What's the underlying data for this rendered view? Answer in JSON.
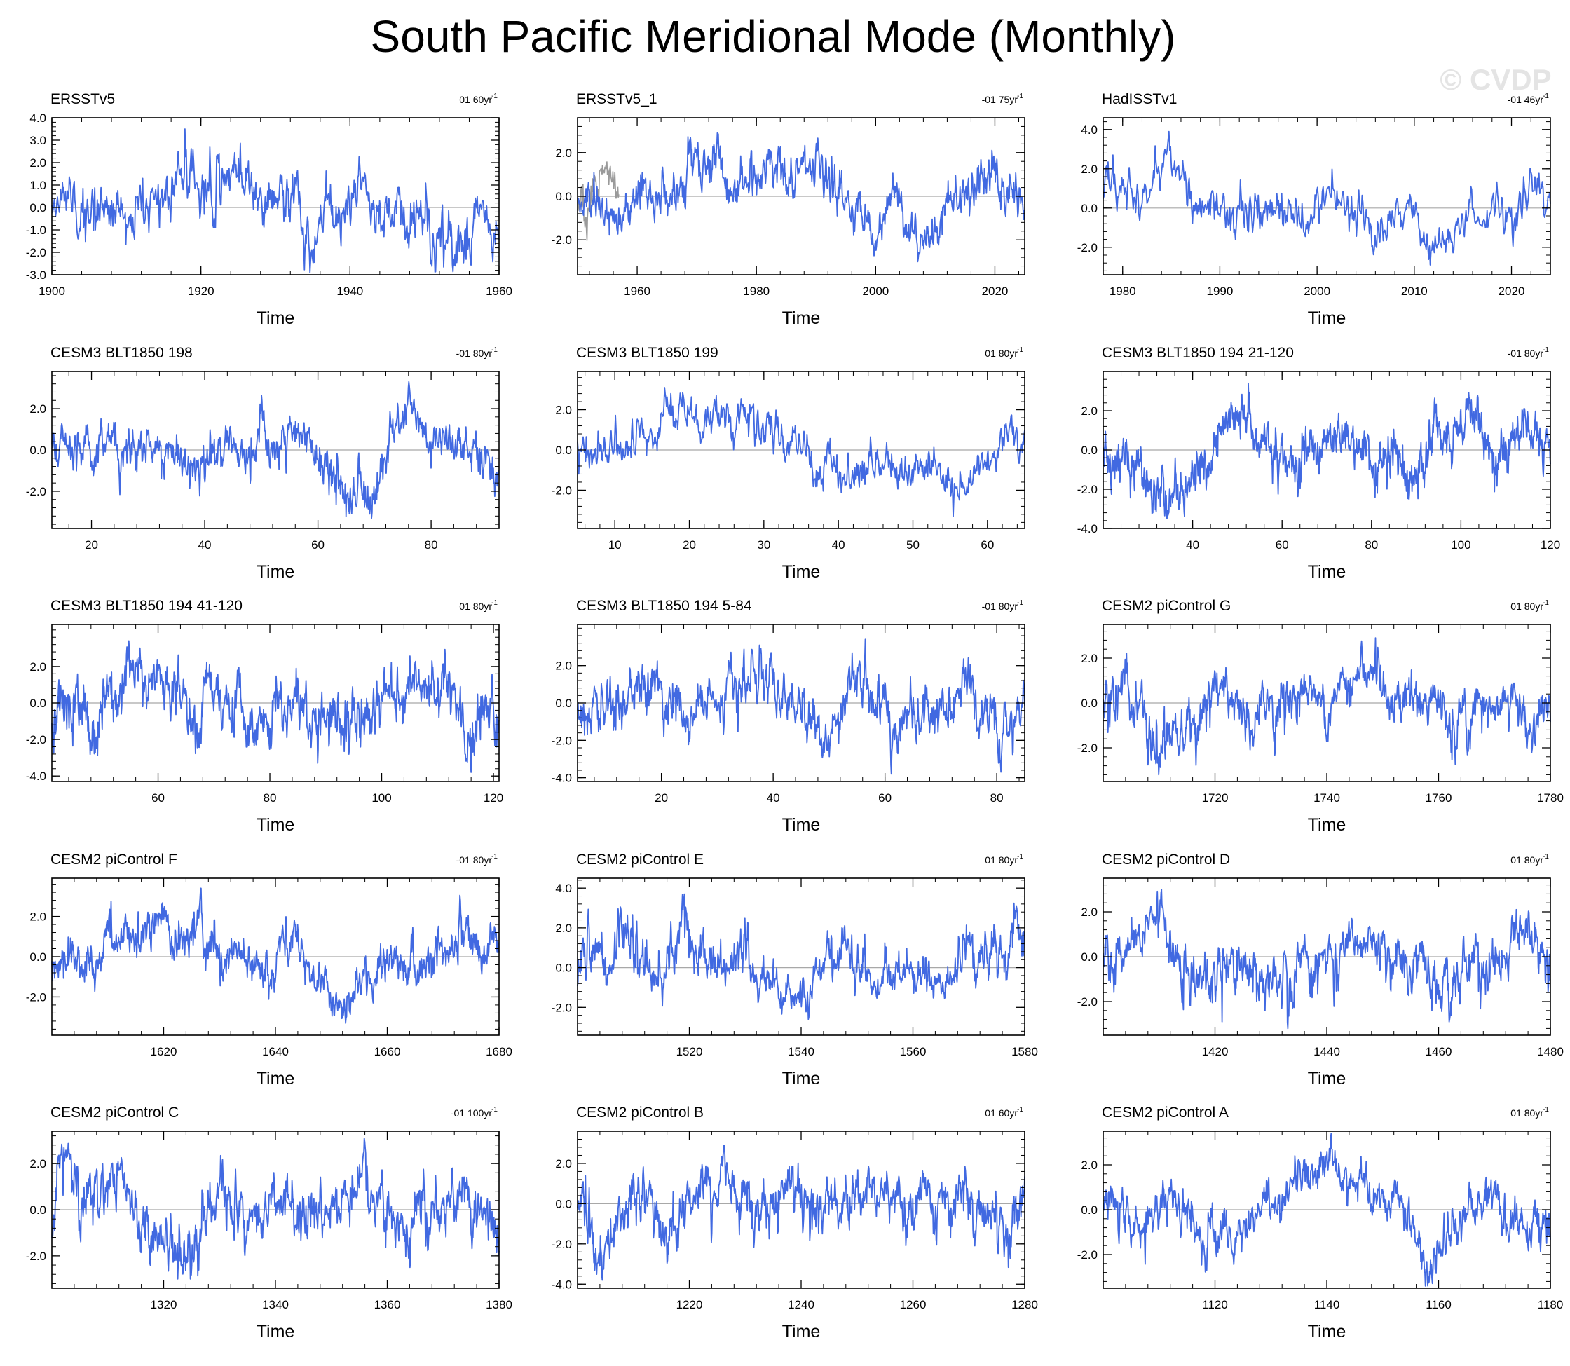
{
  "figure": {
    "title": "South Pacific Meridional Mode (Monthly)",
    "watermark": "© CVDP"
  },
  "style": {
    "line_color": "#4169e1",
    "obs_overlay_color": "#9a9a9a",
    "zero_line_color": "#a8a8a8"
  },
  "chart_data": [
    {
      "type": "line",
      "title": "ERSSTv5",
      "trend": "01 60yr",
      "trend_sup": "-1",
      "xlabel": "Time",
      "xlim": [
        1900,
        1960
      ],
      "ylim": [
        -3,
        4
      ],
      "yticks": [
        -3,
        -2,
        -1,
        0,
        1,
        2,
        3,
        4
      ],
      "ytick_labels": [
        "-3.0",
        "-2.0",
        "-1.0",
        "0.0",
        "1.0",
        "2.0",
        "3.0",
        "4.0"
      ],
      "xticks": [
        1900,
        1920,
        1940,
        1960
      ],
      "xtick_labels": [
        "1900",
        "1920",
        "1940",
        "1960"
      ],
      "series_seed": 11,
      "amplitude": 1.0,
      "n_points": 720,
      "spike_max": 3.5,
      "spike_min": -2.9
    },
    {
      "type": "line",
      "title": "ERSSTv5_1",
      "trend": "-01 75yr",
      "trend_sup": "-1",
      "xlabel": "Time",
      "xlim": [
        1950,
        2025
      ],
      "ylim": [
        -3.6,
        3.6
      ],
      "yticks": [
        -2,
        0,
        2
      ],
      "ytick_labels": [
        "-2.0",
        "0.0",
        "2.0"
      ],
      "xticks": [
        1960,
        1980,
        2000,
        2020
      ],
      "xtick_labels": [
        "1960",
        "1980",
        "2000",
        "2020"
      ],
      "series_seed": 23,
      "amplitude": 1.0,
      "n_points": 900,
      "spike_max": 2.9,
      "spike_min": -3.0,
      "overlay_until": 1957
    },
    {
      "type": "line",
      "title": "HadISSTv1",
      "trend": "-01 46yr",
      "trend_sup": "-1",
      "xlabel": "Time",
      "xlim": [
        1978,
        2024
      ],
      "ylim": [
        -3.4,
        4.6
      ],
      "yticks": [
        -2,
        0,
        2,
        4
      ],
      "ytick_labels": [
        "-2.0",
        "0.0",
        "2.0",
        "4.0"
      ],
      "xticks": [
        1980,
        1990,
        2000,
        2010,
        2020
      ],
      "xtick_labels": [
        "1980",
        "1990",
        "2000",
        "2010",
        "2020"
      ],
      "series_seed": 37,
      "amplitude": 1.0,
      "n_points": 552,
      "spike_max": 3.9,
      "spike_min": -2.9
    },
    {
      "type": "line",
      "title": "CESM3 BLT1850 198",
      "trend": "-01 80yr",
      "trend_sup": "-1",
      "xlabel": "Time",
      "xlim": [
        13,
        92
      ],
      "ylim": [
        -3.8,
        3.8
      ],
      "yticks": [
        -2,
        0,
        2
      ],
      "ytick_labels": [
        "-2.0",
        "0.0",
        "2.0"
      ],
      "xticks": [
        20,
        40,
        60,
        80
      ],
      "xtick_labels": [
        "20",
        "40",
        "60",
        "80"
      ],
      "series_seed": 41,
      "amplitude": 1.0,
      "n_points": 948,
      "spike_max": 3.3,
      "spike_min": -3.3
    },
    {
      "type": "line",
      "title": "CESM3 BLT1850 199",
      "trend": "01 80yr",
      "trend_sup": "-1",
      "xlabel": "Time",
      "xlim": [
        5,
        65
      ],
      "ylim": [
        -3.9,
        3.9
      ],
      "yticks": [
        -2,
        0,
        2
      ],
      "ytick_labels": [
        "-2.0",
        "0.0",
        "2.0"
      ],
      "xticks": [
        10,
        20,
        30,
        40,
        50,
        60
      ],
      "xtick_labels": [
        "10",
        "20",
        "30",
        "40",
        "50",
        "60"
      ],
      "series_seed": 53,
      "amplitude": 1.0,
      "n_points": 720,
      "spike_max": 3.1,
      "spike_min": -3.3
    },
    {
      "type": "line",
      "title": "CESM3 BLT1850 194 21-120",
      "trend": "-01 80yr",
      "trend_sup": "-1",
      "xlabel": "Time",
      "xlim": [
        20,
        120
      ],
      "ylim": [
        -4,
        4
      ],
      "yticks": [
        -4,
        -2,
        0,
        2
      ],
      "ytick_labels": [
        "-4.0",
        "-2.0",
        "0.0",
        "2.0"
      ],
      "xticks": [
        40,
        60,
        80,
        100,
        120
      ],
      "xtick_labels": [
        "40",
        "60",
        "80",
        "100",
        "120"
      ],
      "series_seed": 67,
      "amplitude": 1.0,
      "n_points": 1200,
      "spike_max": 3.4,
      "spike_min": -3.5
    },
    {
      "type": "line",
      "title": "CESM3 BLT1850 194 41-120",
      "trend": "01 80yr",
      "trend_sup": "-1",
      "xlabel": "Time",
      "xlim": [
        41,
        121
      ],
      "ylim": [
        -4.3,
        4.3
      ],
      "yticks": [
        -4,
        -2,
        0,
        2
      ],
      "ytick_labels": [
        "-4.0",
        "-2.0",
        "0.0",
        "2.0"
      ],
      "xticks": [
        60,
        80,
        100,
        120
      ],
      "xtick_labels": [
        "60",
        "80",
        "100",
        "120"
      ],
      "series_seed": 79,
      "amplitude": 1.0,
      "n_points": 960,
      "spike_max": 3.4,
      "spike_min": -3.8
    },
    {
      "type": "line",
      "title": "CESM3 BLT1850 194 5-84",
      "trend": "-01 80yr",
      "trend_sup": "-1",
      "xlabel": "Time",
      "xlim": [
        5,
        85
      ],
      "ylim": [
        -4.2,
        4.2
      ],
      "yticks": [
        -4,
        -2,
        0,
        2
      ],
      "ytick_labels": [
        "-4.0",
        "-2.0",
        "0.0",
        "2.0"
      ],
      "xticks": [
        20,
        40,
        60,
        80
      ],
      "xtick_labels": [
        "20",
        "40",
        "60",
        "80"
      ],
      "series_seed": 83,
      "amplitude": 1.0,
      "n_points": 960,
      "spike_max": 3.4,
      "spike_min": -3.8
    },
    {
      "type": "line",
      "title": "CESM2 piControl G",
      "trend": "01 80yr",
      "trend_sup": "-1",
      "xlabel": "Time",
      "xlim": [
        1700,
        1780
      ],
      "ylim": [
        -3.5,
        3.5
      ],
      "yticks": [
        -2,
        0,
        2
      ],
      "ytick_labels": [
        "-2.0",
        "0.0",
        "2.0"
      ],
      "xticks": [
        1720,
        1740,
        1760,
        1780
      ],
      "xtick_labels": [
        "1720",
        "1740",
        "1760",
        "1780"
      ],
      "series_seed": 97,
      "amplitude": 1.0,
      "n_points": 960,
      "spike_max": 2.9,
      "spike_min": -3.2
    },
    {
      "type": "line",
      "title": "CESM2 piControl F",
      "trend": "-01 80yr",
      "trend_sup": "-1",
      "xlabel": "Time",
      "xlim": [
        1600,
        1680
      ],
      "ylim": [
        -3.9,
        3.9
      ],
      "yticks": [
        -2,
        0,
        2
      ],
      "ytick_labels": [
        "-2.0",
        "0.0",
        "2.0"
      ],
      "xticks": [
        1620,
        1640,
        1660,
        1680
      ],
      "xtick_labels": [
        "1620",
        "1640",
        "1660",
        "1680"
      ],
      "series_seed": 103,
      "amplitude": 1.0,
      "n_points": 960,
      "spike_max": 3.4,
      "spike_min": -3.3
    },
    {
      "type": "line",
      "title": "CESM2 piControl E",
      "trend": "01 80yr",
      "trend_sup": "-1",
      "xlabel": "Time",
      "xlim": [
        1500,
        1580
      ],
      "ylim": [
        -3.4,
        4.5
      ],
      "yticks": [
        -2,
        0,
        2,
        4
      ],
      "ytick_labels": [
        "-2.0",
        "0.0",
        "2.0",
        "4.0"
      ],
      "xticks": [
        1520,
        1540,
        1560,
        1580
      ],
      "xtick_labels": [
        "1520",
        "1540",
        "1560",
        "1580"
      ],
      "series_seed": 113,
      "amplitude": 1.0,
      "n_points": 960,
      "spike_max": 3.7,
      "spike_min": -2.6
    },
    {
      "type": "line",
      "title": "CESM2 piControl D",
      "trend": "01 80yr",
      "trend_sup": "-1",
      "xlabel": "Time",
      "xlim": [
        1400,
        1480
      ],
      "ylim": [
        -3.5,
        3.5
      ],
      "yticks": [
        -2,
        0,
        2
      ],
      "ytick_labels": [
        "-2.0",
        "0.0",
        "2.0"
      ],
      "xticks": [
        1420,
        1440,
        1460,
        1480
      ],
      "xtick_labels": [
        "1420",
        "1440",
        "1460",
        "1480"
      ],
      "series_seed": 127,
      "amplitude": 1.0,
      "n_points": 960,
      "spike_max": 3.0,
      "spike_min": -3.2
    },
    {
      "type": "line",
      "title": "CESM2 piControl C",
      "trend": "-01 100yr",
      "trend_sup": "-1",
      "xlabel": "Time",
      "xlim": [
        1300,
        1380
      ],
      "ylim": [
        -3.4,
        3.4
      ],
      "yticks": [
        -2,
        0,
        2
      ],
      "ytick_labels": [
        "-2.0",
        "0.0",
        "2.0"
      ],
      "xticks": [
        1320,
        1340,
        1360,
        1380
      ],
      "xtick_labels": [
        "1320",
        "1340",
        "1360",
        "1380"
      ],
      "series_seed": 131,
      "amplitude": 1.0,
      "n_points": 960,
      "spike_max": 3.1,
      "spike_min": -3.0
    },
    {
      "type": "line",
      "title": "CESM2 piControl B",
      "trend": "01 60yr",
      "trend_sup": "-1",
      "xlabel": "Time",
      "xlim": [
        1200,
        1280
      ],
      "ylim": [
        -4.2,
        3.6
      ],
      "yticks": [
        -4,
        -2,
        0,
        2
      ],
      "ytick_labels": [
        "-4.0",
        "-2.0",
        "0.0",
        "2.0"
      ],
      "xticks": [
        1220,
        1240,
        1260,
        1280
      ],
      "xtick_labels": [
        "1220",
        "1240",
        "1260",
        "1280"
      ],
      "series_seed": 139,
      "amplitude": 1.0,
      "n_points": 960,
      "spike_max": 2.9,
      "spike_min": -3.8
    },
    {
      "type": "line",
      "title": "CESM2 piControl A",
      "trend": "01 80yr",
      "trend_sup": "-1",
      "xlabel": "Time",
      "xlim": [
        1100,
        1180
      ],
      "ylim": [
        -3.5,
        3.5
      ],
      "yticks": [
        -2,
        0,
        2
      ],
      "ytick_labels": [
        "-2.0",
        "0.0",
        "2.0"
      ],
      "xticks": [
        1120,
        1140,
        1160,
        1180
      ],
      "xtick_labels": [
        "1120",
        "1140",
        "1160",
        "1180"
      ],
      "series_seed": 149,
      "amplitude": 1.0,
      "n_points": 960,
      "spike_max": 3.4,
      "spike_min": -3.4
    }
  ]
}
